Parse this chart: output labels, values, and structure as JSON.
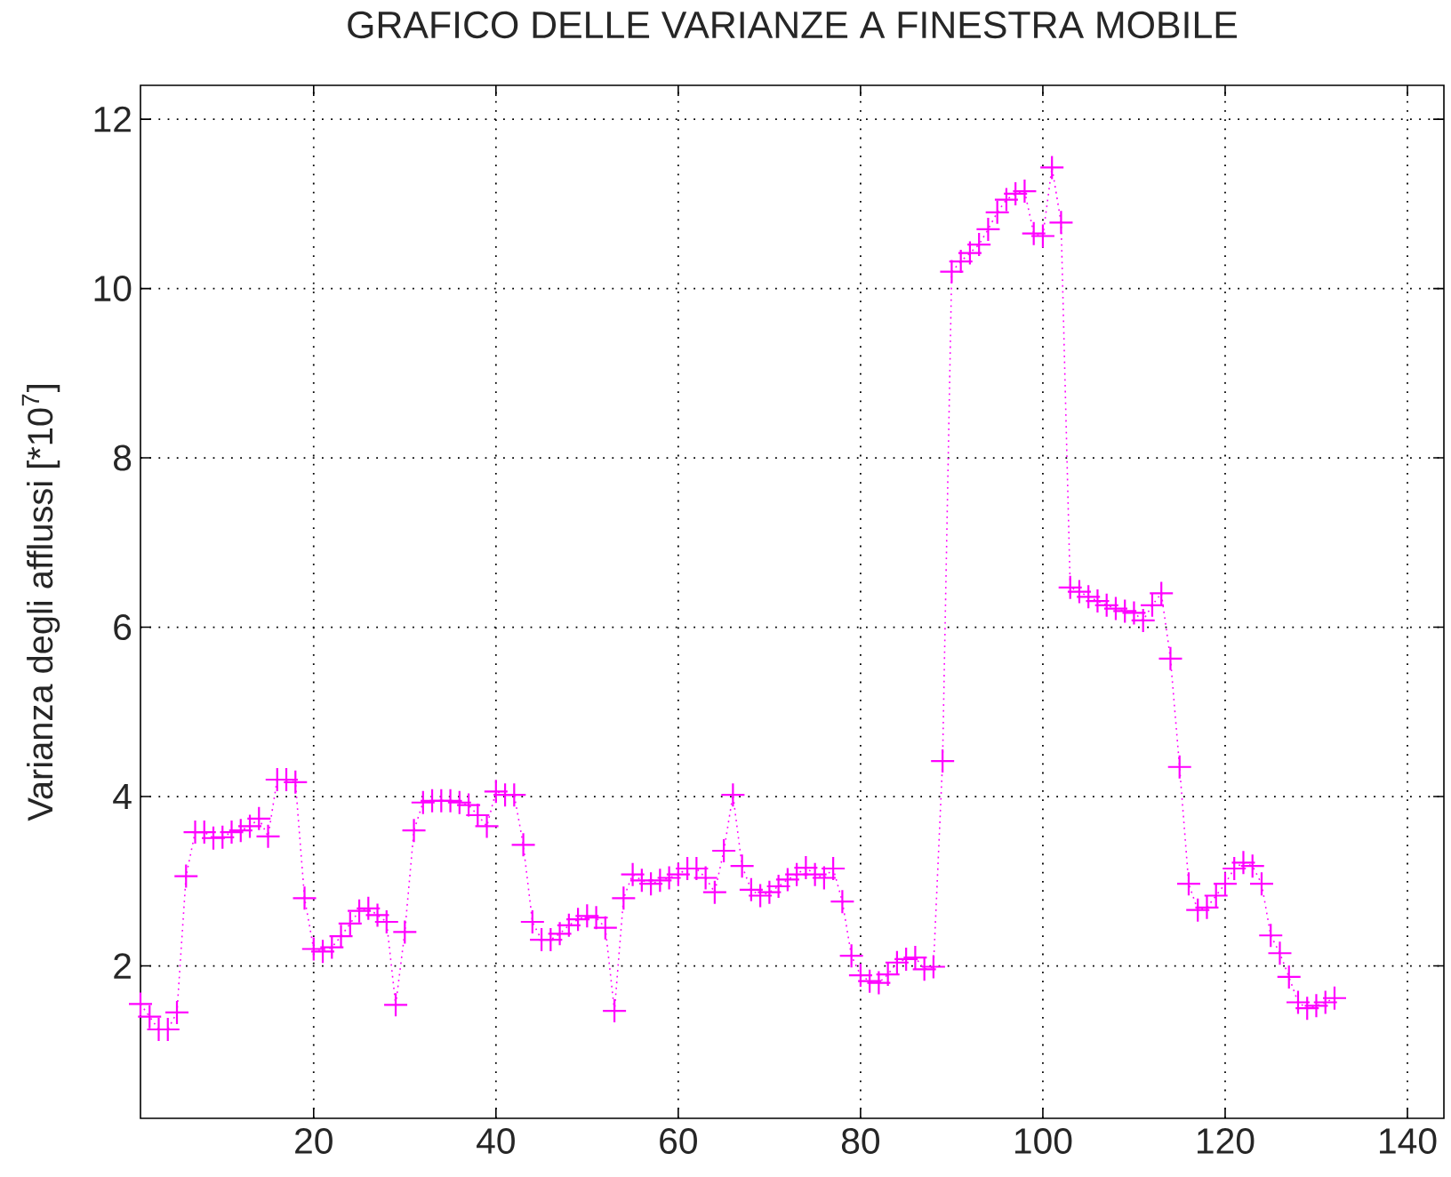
{
  "chart_data": {
    "type": "line",
    "title": "GRAFICO DELLE VARIANZE A FINESTRA MOBILE",
    "ylabel": "Varianza degli afflussi [*10$^{7}$]",
    "x": [
      1,
      2,
      3,
      4,
      5,
      6,
      7,
      8,
      9,
      10,
      11,
      12,
      13,
      14,
      15,
      16,
      17,
      18,
      19,
      20,
      21,
      22,
      23,
      24,
      25,
      26,
      27,
      28,
      29,
      30,
      31,
      32,
      33,
      34,
      35,
      36,
      37,
      38,
      39,
      40,
      41,
      42,
      43,
      44,
      45,
      46,
      47,
      48,
      49,
      50,
      51,
      52,
      53,
      54,
      55,
      56,
      57,
      58,
      59,
      60,
      61,
      62,
      63,
      64,
      65,
      66,
      67,
      68,
      69,
      70,
      71,
      72,
      73,
      74,
      75,
      76,
      77,
      78,
      79,
      80,
      81,
      82,
      83,
      84,
      85,
      86,
      87,
      88,
      89,
      90,
      91,
      92,
      93,
      94,
      95,
      96,
      97,
      98,
      99,
      100,
      101,
      102,
      103,
      104,
      105,
      106,
      107,
      108,
      109,
      110,
      111,
      112,
      113,
      114,
      115,
      116,
      117,
      118,
      119,
      120,
      121,
      122,
      123,
      124,
      125,
      126,
      127,
      128,
      129,
      130,
      131,
      132
    ],
    "values": [
      1.55,
      1.4,
      1.25,
      1.25,
      1.45,
      3.06,
      3.58,
      3.58,
      3.51,
      3.52,
      3.58,
      3.6,
      3.65,
      3.74,
      3.53,
      4.2,
      4.2,
      4.17,
      2.8,
      2.2,
      2.17,
      2.22,
      2.35,
      2.5,
      2.65,
      2.68,
      2.6,
      2.52,
      1.54,
      2.4,
      3.6,
      3.93,
      3.95,
      3.95,
      3.95,
      3.93,
      3.9,
      3.78,
      3.65,
      4.06,
      4.02,
      4.02,
      3.43,
      2.52,
      2.31,
      2.31,
      2.38,
      2.48,
      2.55,
      2.59,
      2.57,
      2.45,
      1.47,
      2.8,
      3.08,
      3.01,
      2.97,
      3.01,
      3.04,
      3.08,
      3.15,
      3.15,
      3.04,
      2.87,
      3.36,
      4.02,
      3.18,
      2.9,
      2.83,
      2.87,
      2.94,
      3.02,
      3.08,
      3.16,
      3.08,
      3.04,
      3.15,
      2.76,
      2.12,
      1.89,
      1.82,
      1.8,
      1.9,
      2.04,
      2.08,
      2.1,
      1.96,
      1.99,
      4.42,
      10.2,
      10.32,
      10.42,
      10.52,
      10.7,
      10.9,
      11.05,
      11.12,
      11.15,
      10.65,
      10.62,
      11.43,
      10.78,
      6.47,
      6.42,
      6.36,
      6.31,
      6.26,
      6.22,
      6.19,
      6.17,
      6.08,
      6.26,
      6.4,
      5.63,
      4.35,
      2.97,
      2.66,
      2.69,
      2.83,
      2.97,
      3.15,
      3.22,
      3.18,
      2.97,
      2.36,
      2.15,
      1.87,
      1.57,
      1.5,
      1.53,
      1.57,
      1.62
    ],
    "color": "#ff00ff",
    "marker": "cross",
    "line_style": "dotted",
    "xlim": [
      1,
      144
    ],
    "ylim": [
      0.2,
      12.4
    ],
    "xticks": [
      20,
      40,
      60,
      80,
      100,
      120,
      140
    ],
    "yticks": [
      2,
      4,
      6,
      8,
      10,
      12
    ],
    "grid": true
  }
}
